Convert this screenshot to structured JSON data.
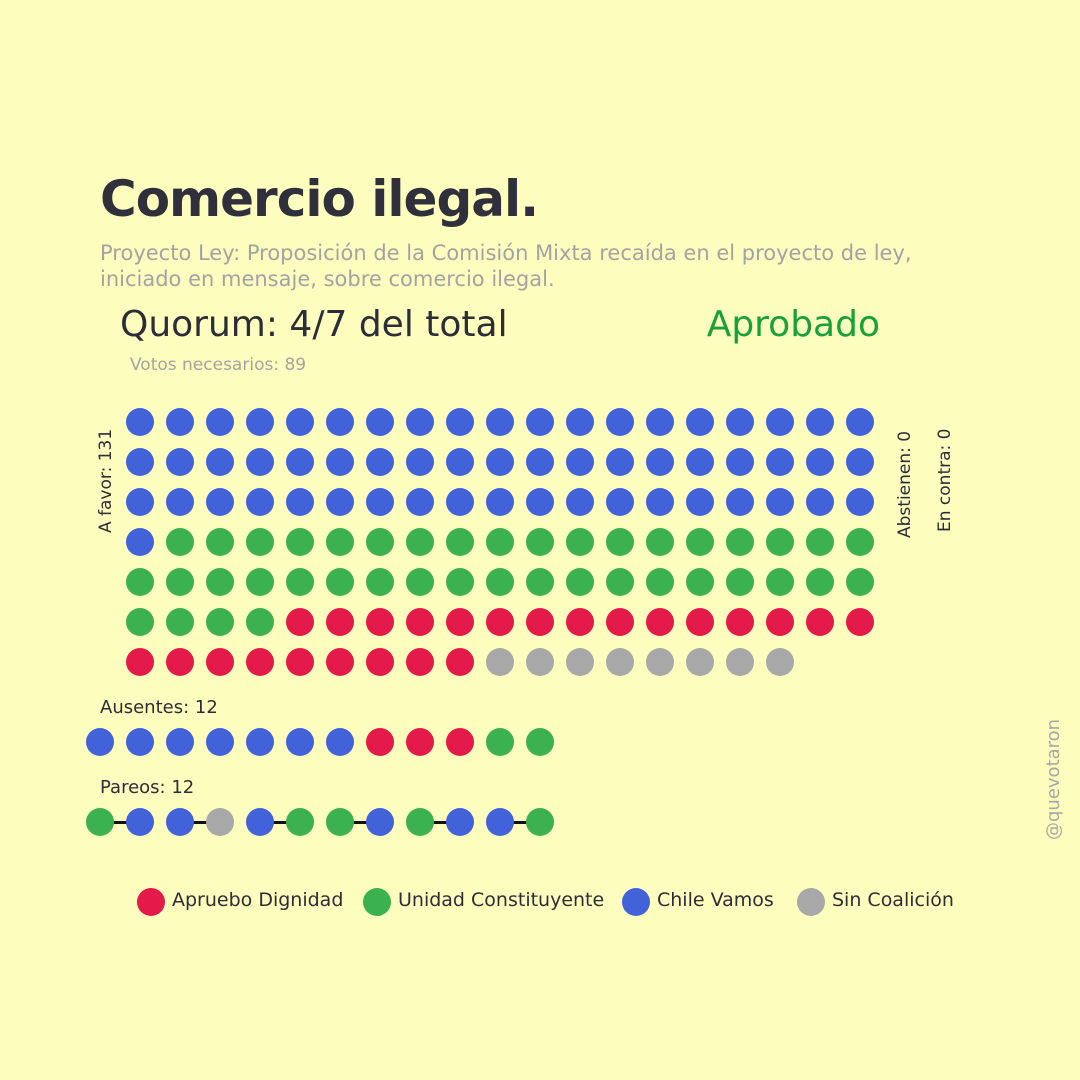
{
  "title": "Comercio ilegal.",
  "subtitle": "Proyecto Ley: Proposición de la Comisión Mixta recaída en el proyecto de ley, iniciado en mensaje, sobre comercio ilegal.",
  "quorum": "Quorum: 4/7 del total",
  "status": "Aprobado",
  "needed_votes": "Votos necesarios: 89",
  "labels": {
    "a_favor": "A favor: 131",
    "abstienen": "Abstienen: 0",
    "en_contra": "En contra: 0",
    "ausentes": "Ausentes: 12",
    "pareos": "Pareos: 12"
  },
  "credit": "@quevotaron",
  "colors": {
    "apruebo_dignidad": "#e41a4a",
    "unidad_constituyente": "#3cb150",
    "chile_vamos": "#4262d9",
    "sin_coalicion": "#a8a8a8",
    "status": "#19a03a"
  },
  "legend": [
    {
      "key": "apruebo_dignidad",
      "label": "Apruebo Dignidad"
    },
    {
      "key": "unidad_constituyente",
      "label": "Unidad Constituyente"
    },
    {
      "key": "chile_vamos",
      "label": "Chile Vamos"
    },
    {
      "key": "sin_coalicion",
      "label": "Sin Coalición"
    }
  ],
  "chart_data": {
    "type": "waffle",
    "a_favor": {
      "total": 131,
      "per_row": 19,
      "segments": [
        {
          "coalition": "chile_vamos",
          "count": 58
        },
        {
          "coalition": "unidad_constituyente",
          "count": 41
        },
        {
          "coalition": "apruebo_dignidad",
          "count": 24
        },
        {
          "coalition": "sin_coalicion",
          "count": 8
        }
      ]
    },
    "abstienen": 0,
    "en_contra": 0,
    "ausentes": {
      "total": 12,
      "sequence": [
        "chile_vamos",
        "chile_vamos",
        "chile_vamos",
        "chile_vamos",
        "chile_vamos",
        "chile_vamos",
        "chile_vamos",
        "apruebo_dignidad",
        "apruebo_dignidad",
        "apruebo_dignidad",
        "unidad_constituyente",
        "unidad_constituyente"
      ]
    },
    "pareos": {
      "total": 12,
      "pairs": [
        [
          "unidad_constituyente",
          "chile_vamos"
        ],
        [
          "chile_vamos",
          "sin_coalicion"
        ],
        [
          "chile_vamos",
          "unidad_constituyente"
        ],
        [
          "unidad_constituyente",
          "chile_vamos"
        ],
        [
          "unidad_constituyente",
          "chile_vamos"
        ],
        [
          "chile_vamos",
          "unidad_constituyente"
        ]
      ]
    }
  }
}
